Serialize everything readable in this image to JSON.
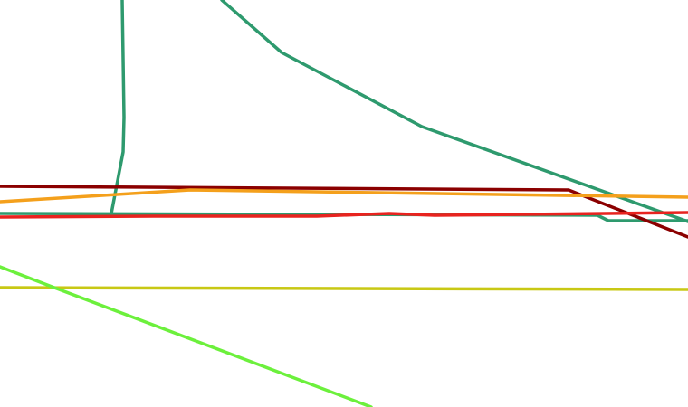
{
  "lines": [
    {
      "color": "#2e9a6e"
    },
    {
      "color": "#2e9a6e"
    },
    {
      "color": "#2e9a6e"
    },
    {
      "color": "#8b0000"
    },
    {
      "color": "#f4a01c"
    },
    {
      "color": "#e8231f"
    },
    {
      "color": "#c8c814"
    },
    {
      "color": "#6cf03c"
    }
  ]
}
